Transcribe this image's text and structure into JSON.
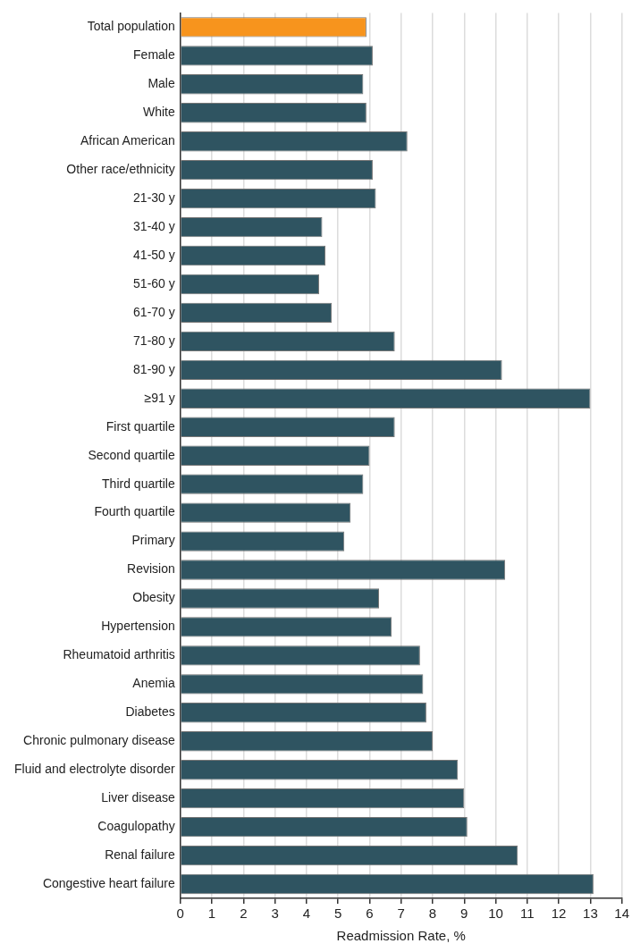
{
  "chart_data": {
    "type": "bar",
    "orientation": "horizontal",
    "xlabel": "Readmission Rate, %",
    "categories": [
      "Total population",
      "Female",
      "Male",
      "White",
      "African American",
      "Other race/ethnicity",
      "21-30 y",
      "31-40 y",
      "41-50 y",
      "51-60 y",
      "61-70 y",
      "71-80 y",
      "81-90 y",
      "≥91 y",
      "First quartile",
      "Second quartile",
      "Third quartile",
      "Fourth quartile",
      "Primary",
      "Revision",
      "Obesity",
      "Hypertension",
      "Rheumatoid arthritis",
      "Anemia",
      "Diabetes",
      "Chronic pulmonary disease",
      "Fluid and electrolyte disorder",
      "Liver disease",
      "Coagulopathy",
      "Renal failure",
      "Congestive heart failure"
    ],
    "values": [
      5.9,
      6.1,
      5.8,
      5.9,
      7.2,
      6.1,
      6.2,
      4.5,
      4.6,
      4.4,
      4.8,
      6.8,
      10.2,
      13.0,
      6.8,
      6.0,
      5.8,
      5.4,
      5.2,
      10.3,
      6.3,
      6.7,
      7.6,
      7.7,
      7.8,
      8.0,
      8.8,
      9.0,
      9.1,
      10.7,
      13.1
    ],
    "colors": [
      "#f7941d",
      "#2f5461",
      "#2f5461",
      "#2f5461",
      "#2f5461",
      "#2f5461",
      "#2f5461",
      "#2f5461",
      "#2f5461",
      "#2f5461",
      "#2f5461",
      "#2f5461",
      "#2f5461",
      "#2f5461",
      "#2f5461",
      "#2f5461",
      "#2f5461",
      "#2f5461",
      "#2f5461",
      "#2f5461",
      "#2f5461",
      "#2f5461",
      "#2f5461",
      "#2f5461",
      "#2f5461",
      "#2f5461",
      "#2f5461",
      "#2f5461",
      "#2f5461",
      "#2f5461",
      "#2f5461"
    ],
    "xlim": [
      0,
      14
    ],
    "xticks": [
      0,
      1,
      2,
      3,
      4,
      5,
      6,
      7,
      8,
      9,
      10,
      11,
      12,
      13,
      14
    ],
    "grid": "x",
    "legend": false
  }
}
